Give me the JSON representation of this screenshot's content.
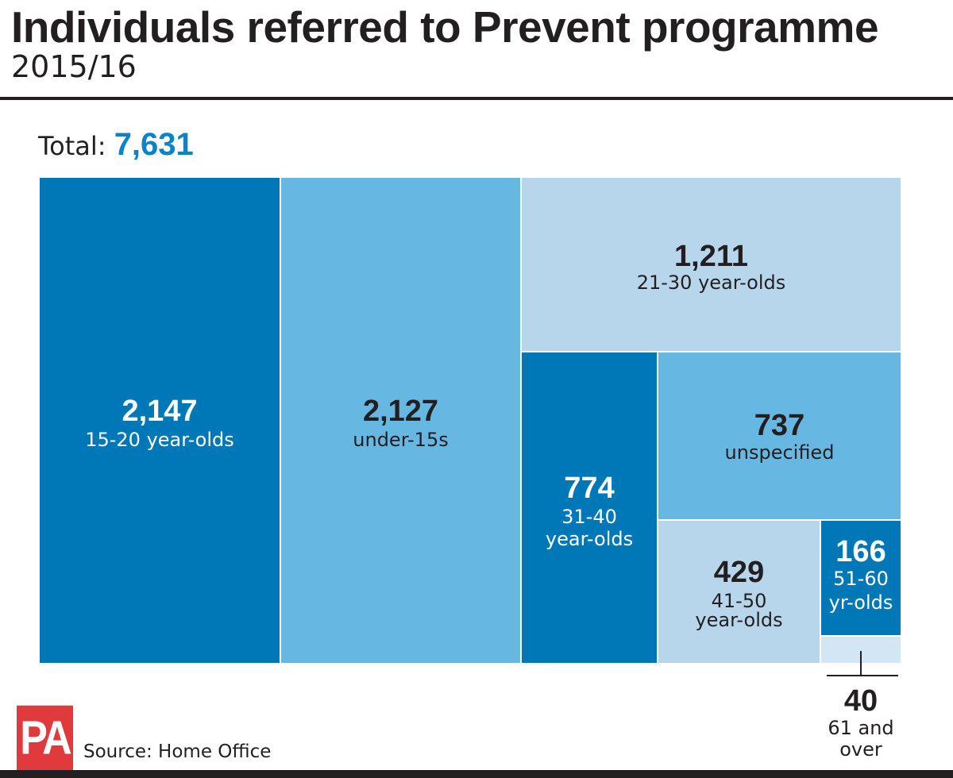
{
  "header": {
    "title": "Individuals referred to Prevent programme",
    "subtitle": "2015/16"
  },
  "total": {
    "label": "Total:",
    "value": "7,631"
  },
  "footer": {
    "source": "Source: Home Office",
    "logo_text": "PA"
  },
  "colors": {
    "dark": "#0078b8",
    "mid": "#66b8e2",
    "pale": "#b7d6ec",
    "palest": "#d3e6f4",
    "accent": "#0a84c6",
    "logo": "#e03a3c"
  },
  "chart_data": {
    "type": "treemap",
    "title": "Individuals referred to Prevent programme",
    "subtitle": "2015/16",
    "total": 7631,
    "items": [
      {
        "value": 2147,
        "value_label": "2,147",
        "category": [
          "15-20 year-olds"
        ],
        "color": "dark"
      },
      {
        "value": 2127,
        "value_label": "2,127",
        "category": [
          "under-15s"
        ],
        "color": "mid"
      },
      {
        "value": 1211,
        "value_label": "1,211",
        "category": [
          "21-30 year-olds"
        ],
        "color": "pale"
      },
      {
        "value": 774,
        "value_label": "774",
        "category": [
          "31-40",
          "year-olds"
        ],
        "color": "dark"
      },
      {
        "value": 737,
        "value_label": "737",
        "category": [
          "unspecified"
        ],
        "color": "mid"
      },
      {
        "value": 429,
        "value_label": "429",
        "category": [
          "41-50",
          "year-olds"
        ],
        "color": "pale"
      },
      {
        "value": 166,
        "value_label": "166",
        "category": [
          "51-60",
          "yr-olds"
        ],
        "color": "dark"
      },
      {
        "value": 40,
        "value_label": "40",
        "category": [
          "61 and",
          "over"
        ],
        "color": "palest"
      }
    ]
  }
}
